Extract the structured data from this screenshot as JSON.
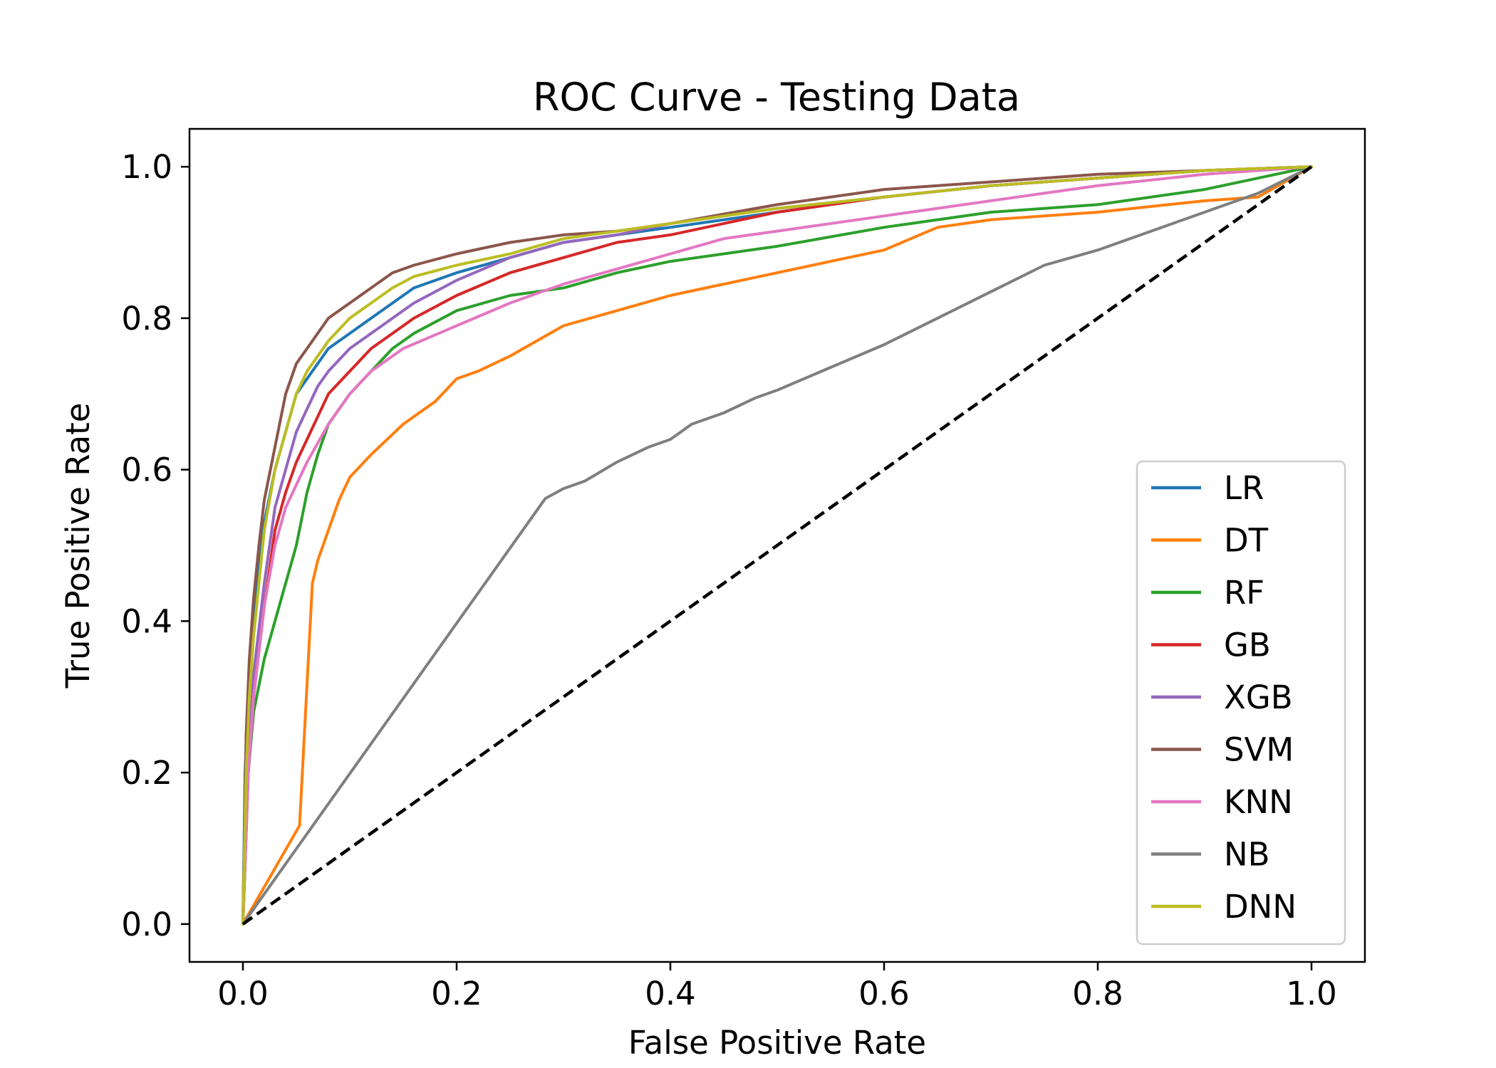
{
  "chart_data": {
    "type": "line",
    "title": "ROC Curve - Testing Data",
    "xlabel": "False Positive Rate",
    "ylabel": "True Positive Rate",
    "xlim": [
      -0.05,
      1.05
    ],
    "ylim": [
      -0.05,
      1.05
    ],
    "xticks": [
      "0.0",
      "0.2",
      "0.4",
      "0.6",
      "0.8",
      "1.0"
    ],
    "yticks": [
      "0.0",
      "0.2",
      "0.4",
      "0.6",
      "0.8",
      "1.0"
    ],
    "legend_position": "lower-right",
    "grid": false,
    "series": [
      {
        "name": "LR",
        "color": "#1f77b4",
        "x": [
          0,
          0.002,
          0.005,
          0.01,
          0.015,
          0.02,
          0.03,
          0.04,
          0.05,
          0.06,
          0.07,
          0.08,
          0.1,
          0.12,
          0.14,
          0.16,
          0.2,
          0.25,
          0.3,
          0.35,
          0.4,
          0.5,
          0.6,
          0.7,
          0.8,
          0.9,
          1.0
        ],
        "y": [
          0,
          0.2,
          0.3,
          0.4,
          0.47,
          0.53,
          0.6,
          0.65,
          0.7,
          0.72,
          0.74,
          0.76,
          0.78,
          0.8,
          0.82,
          0.84,
          0.86,
          0.88,
          0.9,
          0.91,
          0.92,
          0.94,
          0.96,
          0.975,
          0.985,
          0.995,
          1.0
        ]
      },
      {
        "name": "DT",
        "color": "#ff7f0e",
        "x": [
          0,
          0.053,
          0.065,
          0.07,
          0.08,
          0.09,
          0.1,
          0.12,
          0.15,
          0.18,
          0.2,
          0.22,
          0.25,
          0.3,
          0.35,
          0.4,
          0.45,
          0.5,
          0.55,
          0.6,
          0.65,
          0.7,
          0.8,
          0.9,
          0.95,
          1.0
        ],
        "y": [
          0,
          0.13,
          0.45,
          0.48,
          0.52,
          0.56,
          0.59,
          0.62,
          0.66,
          0.69,
          0.72,
          0.73,
          0.75,
          0.79,
          0.81,
          0.83,
          0.845,
          0.86,
          0.875,
          0.89,
          0.92,
          0.93,
          0.94,
          0.955,
          0.96,
          1.0
        ]
      },
      {
        "name": "RF",
        "color": "#2ca02c",
        "x": [
          0,
          0.005,
          0.01,
          0.02,
          0.03,
          0.04,
          0.05,
          0.06,
          0.07,
          0.08,
          0.1,
          0.12,
          0.14,
          0.16,
          0.2,
          0.25,
          0.3,
          0.35,
          0.4,
          0.5,
          0.6,
          0.7,
          0.8,
          0.9,
          1.0
        ],
        "y": [
          0,
          0.2,
          0.28,
          0.35,
          0.4,
          0.45,
          0.5,
          0.57,
          0.62,
          0.66,
          0.7,
          0.73,
          0.76,
          0.78,
          0.81,
          0.83,
          0.84,
          0.86,
          0.875,
          0.895,
          0.92,
          0.94,
          0.95,
          0.97,
          1.0
        ]
      },
      {
        "name": "GB",
        "color": "#d62728",
        "x": [
          0,
          0.005,
          0.01,
          0.02,
          0.03,
          0.04,
          0.05,
          0.06,
          0.07,
          0.08,
          0.1,
          0.12,
          0.14,
          0.16,
          0.2,
          0.25,
          0.3,
          0.35,
          0.4,
          0.5,
          0.6,
          0.7,
          0.8,
          0.9,
          1.0
        ],
        "y": [
          0,
          0.2,
          0.3,
          0.42,
          0.52,
          0.57,
          0.61,
          0.64,
          0.67,
          0.7,
          0.73,
          0.76,
          0.78,
          0.8,
          0.83,
          0.86,
          0.88,
          0.9,
          0.91,
          0.94,
          0.96,
          0.975,
          0.985,
          0.995,
          1.0
        ]
      },
      {
        "name": "XGB",
        "color": "#9467bd",
        "x": [
          0,
          0.005,
          0.01,
          0.02,
          0.03,
          0.04,
          0.05,
          0.06,
          0.07,
          0.08,
          0.1,
          0.12,
          0.14,
          0.16,
          0.2,
          0.25,
          0.3,
          0.35,
          0.4,
          0.5,
          0.6,
          0.7,
          0.8,
          0.9,
          1.0
        ],
        "y": [
          0,
          0.22,
          0.33,
          0.45,
          0.55,
          0.6,
          0.65,
          0.68,
          0.71,
          0.73,
          0.76,
          0.78,
          0.8,
          0.82,
          0.85,
          0.88,
          0.9,
          0.91,
          0.925,
          0.945,
          0.96,
          0.975,
          0.985,
          0.995,
          1.0
        ]
      },
      {
        "name": "SVM",
        "color": "#8c564b",
        "x": [
          0,
          0.003,
          0.006,
          0.01,
          0.015,
          0.02,
          0.03,
          0.04,
          0.05,
          0.06,
          0.07,
          0.08,
          0.1,
          0.12,
          0.14,
          0.16,
          0.2,
          0.25,
          0.3,
          0.35,
          0.4,
          0.5,
          0.6,
          0.7,
          0.8,
          0.9,
          1.0
        ],
        "y": [
          0,
          0.25,
          0.35,
          0.43,
          0.5,
          0.56,
          0.63,
          0.7,
          0.74,
          0.76,
          0.78,
          0.8,
          0.82,
          0.84,
          0.86,
          0.87,
          0.885,
          0.9,
          0.91,
          0.915,
          0.925,
          0.95,
          0.97,
          0.98,
          0.99,
          0.995,
          1.0
        ]
      },
      {
        "name": "KNN",
        "color": "#e377c2",
        "x": [
          0,
          0.005,
          0.01,
          0.02,
          0.03,
          0.04,
          0.05,
          0.06,
          0.08,
          0.1,
          0.12,
          0.15,
          0.2,
          0.25,
          0.3,
          0.35,
          0.4,
          0.45,
          0.5,
          0.6,
          0.7,
          0.8,
          0.9,
          1.0
        ],
        "y": [
          0,
          0.2,
          0.3,
          0.42,
          0.5,
          0.55,
          0.58,
          0.61,
          0.66,
          0.7,
          0.73,
          0.76,
          0.79,
          0.82,
          0.845,
          0.865,
          0.885,
          0.905,
          0.915,
          0.935,
          0.955,
          0.975,
          0.99,
          1.0
        ]
      },
      {
        "name": "NB",
        "color": "#7f7f7f",
        "x": [
          0,
          0.283,
          0.3,
          0.32,
          0.35,
          0.38,
          0.4,
          0.42,
          0.45,
          0.48,
          0.5,
          0.55,
          0.6,
          0.65,
          0.7,
          0.75,
          0.8,
          0.85,
          0.9,
          0.95,
          1.0
        ],
        "y": [
          0,
          0.562,
          0.575,
          0.585,
          0.61,
          0.63,
          0.64,
          0.66,
          0.675,
          0.695,
          0.705,
          0.735,
          0.765,
          0.8,
          0.835,
          0.87,
          0.89,
          0.915,
          0.94,
          0.965,
          1.0
        ]
      },
      {
        "name": "DNN",
        "color": "#bcbd22",
        "x": [
          0,
          0.003,
          0.006,
          0.01,
          0.015,
          0.02,
          0.03,
          0.04,
          0.05,
          0.06,
          0.07,
          0.08,
          0.1,
          0.12,
          0.14,
          0.16,
          0.2,
          0.25,
          0.3,
          0.35,
          0.4,
          0.5,
          0.6,
          0.7,
          0.8,
          0.9,
          1.0
        ],
        "y": [
          0,
          0.2,
          0.3,
          0.38,
          0.45,
          0.52,
          0.6,
          0.65,
          0.7,
          0.73,
          0.75,
          0.77,
          0.8,
          0.82,
          0.84,
          0.855,
          0.87,
          0.885,
          0.905,
          0.915,
          0.925,
          0.945,
          0.96,
          0.975,
          0.985,
          0.995,
          1.0
        ]
      }
    ],
    "reference_line": {
      "x": [
        0,
        1
      ],
      "y": [
        0,
        1
      ],
      "color": "#000000",
      "style": "dashed"
    }
  }
}
